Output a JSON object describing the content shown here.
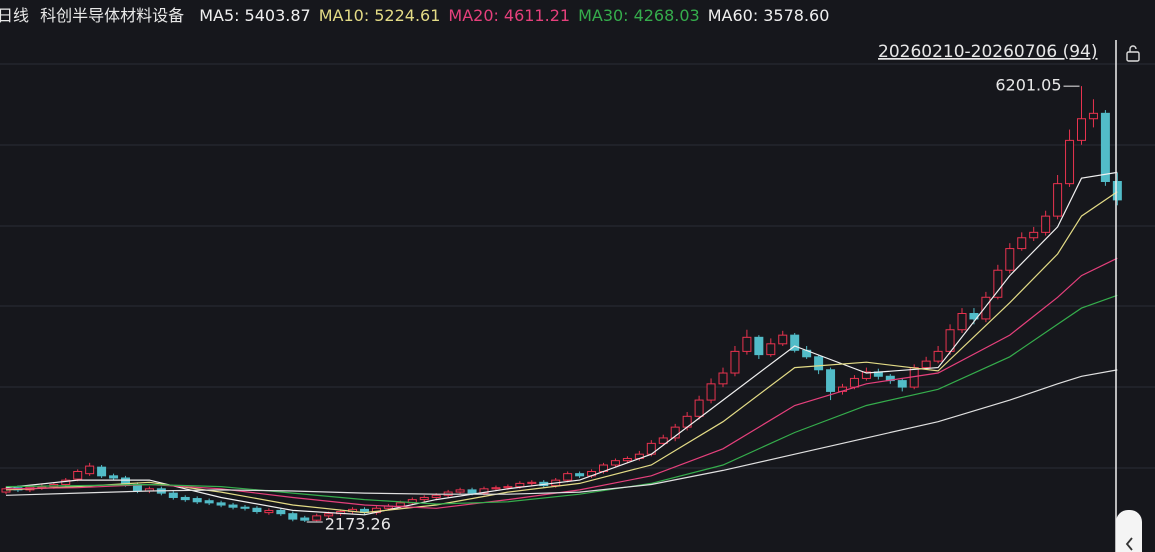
{
  "chart_data": {
    "type": "candlestick",
    "period": "日线",
    "title": "科创半导体材料设备",
    "range_label": "20260210-20260706 (94)",
    "ylim": [
      1896,
      6720
    ],
    "up_color": "#e8334f",
    "down_color": "#52bcc8",
    "open": [
      2450,
      2490,
      2470,
      2490,
      2500,
      2520,
      2570,
      2620,
      2680,
      2600,
      2580,
      2520,
      2460,
      2480,
      2440,
      2400,
      2390,
      2370,
      2350,
      2330,
      2310,
      2300,
      2260,
      2280,
      2250,
      2210,
      2190,
      2230,
      2250,
      2270,
      2290,
      2260,
      2300,
      2320,
      2350,
      2380,
      2400,
      2420,
      2450,
      2470,
      2440,
      2480,
      2490,
      2500,
      2530,
      2540,
      2510,
      2560,
      2620,
      2600,
      2640,
      2700,
      2740,
      2760,
      2800,
      2900,
      2950,
      3050,
      3150,
      3300,
      3450,
      3550,
      3750,
      3880,
      3720,
      3820,
      3900,
      3760,
      3700,
      3580,
      3380,
      3420,
      3500,
      3560,
      3520,
      3480,
      3420,
      3600,
      3660,
      3750,
      3950,
      4100,
      4050,
      4250,
      4500,
      4700,
      4800,
      4850,
      5000,
      5300,
      5700,
      5900,
      5950,
      5320
    ],
    "high": [
      2500,
      2510,
      2510,
      2520,
      2540,
      2580,
      2660,
      2720,
      2700,
      2620,
      2600,
      2540,
      2500,
      2500,
      2460,
      2420,
      2410,
      2390,
      2370,
      2350,
      2330,
      2320,
      2300,
      2300,
      2270,
      2230,
      2250,
      2270,
      2290,
      2310,
      2310,
      2320,
      2340,
      2370,
      2400,
      2420,
      2440,
      2470,
      2490,
      2490,
      2500,
      2510,
      2520,
      2550,
      2560,
      2560,
      2580,
      2640,
      2640,
      2660,
      2720,
      2760,
      2780,
      2830,
      2930,
      2980,
      3080,
      3190,
      3340,
      3500,
      3600,
      3800,
      3950,
      3900,
      3870,
      3940,
      3920,
      3800,
      3720,
      3600,
      3450,
      3530,
      3600,
      3590,
      3540,
      3500,
      3630,
      3700,
      3800,
      4000,
      4150,
      4150,
      4300,
      4550,
      4750,
      4850,
      4900,
      5050,
      5380,
      5800,
      6201.05,
      6080,
      5980,
      5400
    ],
    "low": [
      2430,
      2450,
      2450,
      2470,
      2480,
      2500,
      2550,
      2600,
      2580,
      2560,
      2500,
      2440,
      2440,
      2420,
      2380,
      2360,
      2340,
      2330,
      2310,
      2290,
      2280,
      2250,
      2240,
      2230,
      2180,
      2173.26,
      2180,
      2210,
      2230,
      2250,
      2240,
      2240,
      2280,
      2300,
      2330,
      2360,
      2380,
      2400,
      2430,
      2420,
      2420,
      2460,
      2470,
      2480,
      2510,
      2490,
      2490,
      2540,
      2580,
      2580,
      2620,
      2680,
      2720,
      2740,
      2780,
      2880,
      2920,
      3020,
      3120,
      3270,
      3420,
      3520,
      3720,
      3680,
      3700,
      3800,
      3740,
      3680,
      3540,
      3300,
      3350,
      3400,
      3480,
      3490,
      3450,
      3380,
      3400,
      3580,
      3640,
      3720,
      3920,
      4000,
      4020,
      4230,
      4470,
      4680,
      4770,
      4820,
      4970,
      5270,
      5660,
      5820,
      5280,
      5100
    ],
    "close": [
      2480,
      2470,
      2495,
      2500,
      2520,
      2560,
      2640,
      2690,
      2600,
      2580,
      2520,
      2460,
      2480,
      2440,
      2400,
      2380,
      2360,
      2350,
      2330,
      2310,
      2300,
      2270,
      2280,
      2250,
      2200,
      2190,
      2230,
      2250,
      2270,
      2290,
      2260,
      2300,
      2320,
      2350,
      2380,
      2400,
      2420,
      2450,
      2470,
      2440,
      2480,
      2490,
      2500,
      2530,
      2540,
      2510,
      2560,
      2620,
      2600,
      2640,
      2700,
      2740,
      2760,
      2800,
      2900,
      2950,
      3050,
      3150,
      3300,
      3450,
      3550,
      3750,
      3880,
      3720,
      3820,
      3900,
      3760,
      3700,
      3580,
      3380,
      3420,
      3500,
      3560,
      3520,
      3480,
      3420,
      3600,
      3660,
      3750,
      3950,
      4100,
      4050,
      4250,
      4500,
      4700,
      4800,
      4850,
      5000,
      5300,
      5700,
      5900,
      5950,
      5320,
      5150
    ],
    "series": [
      {
        "name": "MA5:",
        "color": "#f0f0f0",
        "x": [
          0,
          6,
          12,
          18,
          24,
          30,
          36,
          42,
          48,
          54,
          60,
          66,
          72,
          78,
          84,
          88,
          90,
          93
        ],
        "values": [
          2490,
          2560,
          2560,
          2400,
          2280,
          2240,
          2380,
          2480,
          2560,
          2800,
          3300,
          3800,
          3550,
          3600,
          4450,
          4900,
          5350,
          5403.87
        ],
        "last_value": 5403.87,
        "value_label": "5403.87"
      },
      {
        "name": "MA10:",
        "color": "#e3db86",
        "x": [
          0,
          6,
          12,
          18,
          24,
          30,
          36,
          42,
          48,
          54,
          60,
          66,
          72,
          78,
          84,
          88,
          90,
          93
        ],
        "values": [
          2470,
          2500,
          2540,
          2450,
          2330,
          2260,
          2330,
          2450,
          2530,
          2700,
          3100,
          3600,
          3650,
          3570,
          4200,
          4650,
          5000,
          5224.61
        ],
        "last_value": 5224.61,
        "value_label": "5224.61"
      },
      {
        "name": "MA20:",
        "color": "#e5407c",
        "x": [
          0,
          6,
          12,
          18,
          24,
          30,
          36,
          42,
          48,
          54,
          60,
          66,
          72,
          78,
          84,
          88,
          90,
          93
        ],
        "values": [
          2480,
          2490,
          2520,
          2480,
          2400,
          2330,
          2300,
          2380,
          2470,
          2600,
          2850,
          3250,
          3450,
          3550,
          3900,
          4250,
          4450,
          4611.21
        ],
        "last_value": 4611.21,
        "value_label": "4611.21"
      },
      {
        "name": "MA30:",
        "color": "#35ad4c",
        "x": [
          0,
          6,
          12,
          18,
          24,
          30,
          36,
          42,
          48,
          54,
          60,
          66,
          72,
          78,
          84,
          88,
          90,
          93
        ],
        "values": [
          2500,
          2510,
          2520,
          2500,
          2440,
          2380,
          2340,
          2360,
          2430,
          2530,
          2700,
          3000,
          3250,
          3400,
          3700,
          4000,
          4150,
          4268.03
        ],
        "last_value": 4268.03,
        "value_label": "4268.03"
      },
      {
        "name": "MA60:",
        "color": "#e0e0e0",
        "x": [
          0,
          6,
          12,
          18,
          24,
          30,
          36,
          42,
          48,
          54,
          60,
          66,
          72,
          78,
          84,
          88,
          90,
          93
        ],
        "values": [
          2420,
          2440,
          2460,
          2470,
          2460,
          2440,
          2430,
          2430,
          2450,
          2520,
          2650,
          2800,
          2950,
          3100,
          3300,
          3450,
          3520,
          3578.6
        ],
        "last_value": 3578.6,
        "value_label": "3578.60"
      }
    ]
  }
}
